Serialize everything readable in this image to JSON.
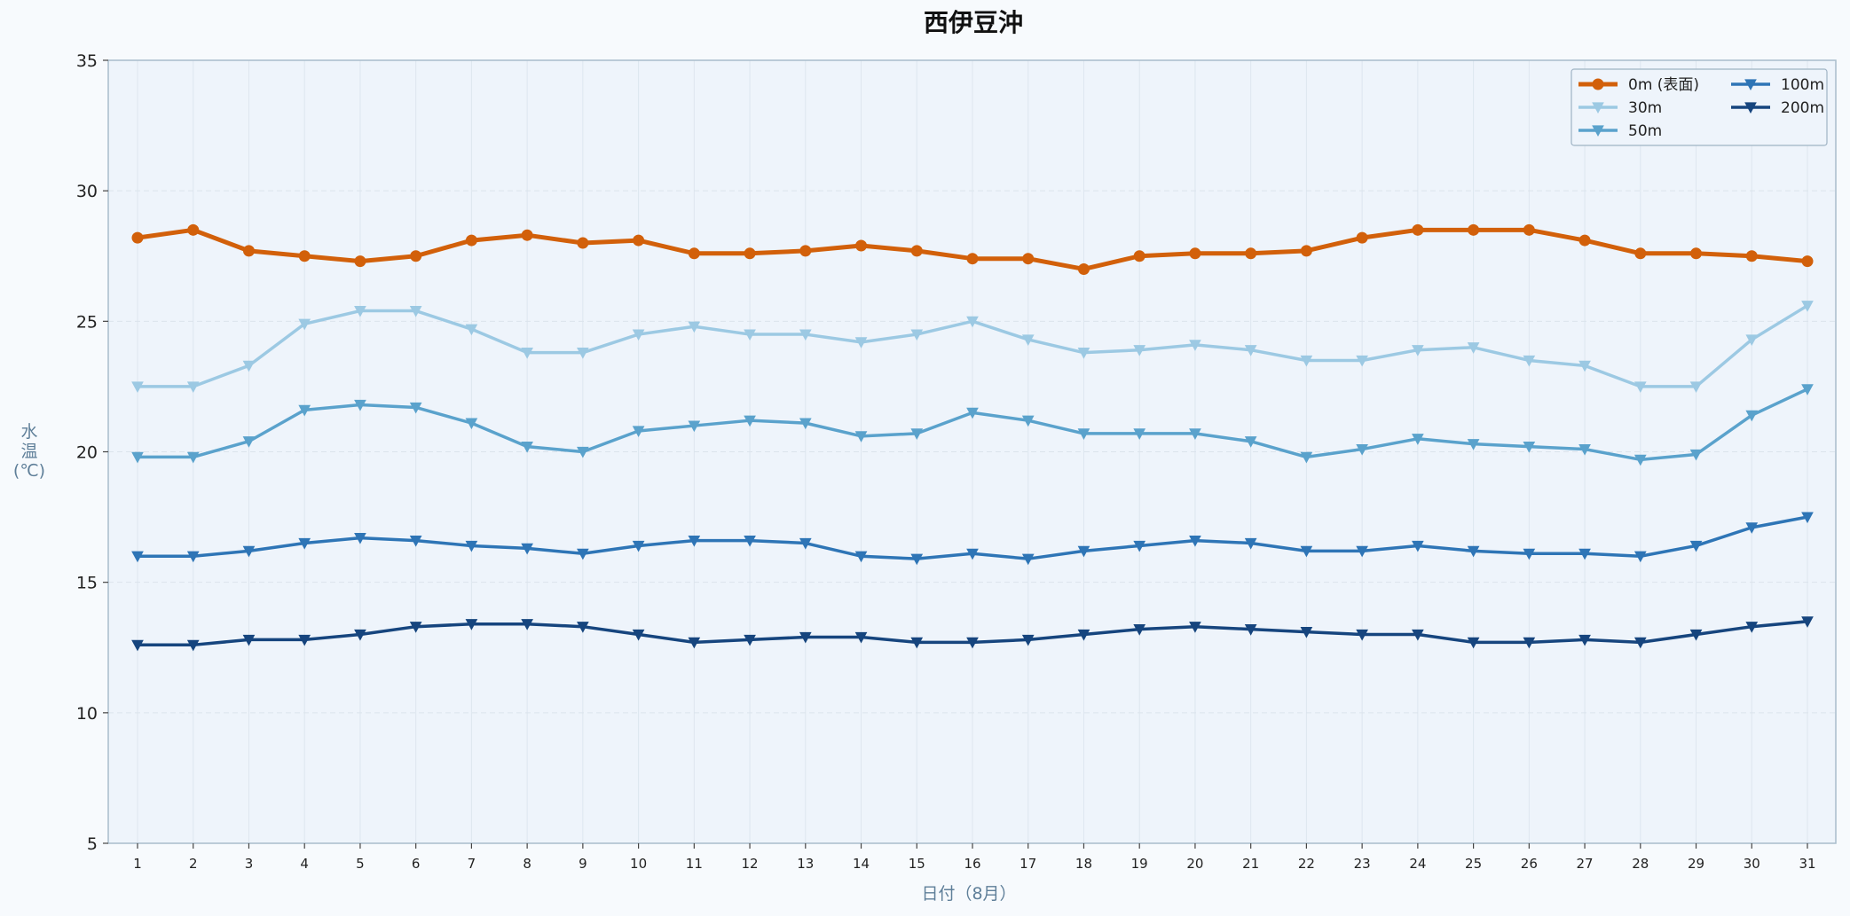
{
  "chart_data": {
    "type": "line",
    "title": "西伊豆沖",
    "xlabel": "日付（8月）",
    "ylabel": "水\n温\n(℃)",
    "ylim": [
      5,
      35
    ],
    "yticks": [
      5,
      10,
      15,
      20,
      25,
      30,
      35
    ],
    "grid": true,
    "legend_position": "top-right",
    "x": [
      "1",
      "2",
      "3",
      "4",
      "5",
      "6",
      "7",
      "8",
      "9",
      "10",
      "11",
      "12",
      "13",
      "14",
      "15",
      "16",
      "17",
      "18",
      "19",
      "20",
      "21",
      "22",
      "23",
      "24",
      "25",
      "26",
      "27",
      "28",
      "29",
      "30",
      "31"
    ],
    "series": [
      {
        "name": "0m (表面)",
        "color": "#d2600a",
        "marker": "circle",
        "values": [
          28.2,
          28.5,
          27.7,
          27.5,
          27.3,
          27.5,
          28.1,
          28.3,
          28.0,
          28.1,
          27.6,
          27.6,
          27.7,
          27.9,
          27.7,
          27.4,
          27.4,
          27.0,
          27.5,
          27.6,
          27.6,
          27.7,
          28.2,
          28.5,
          28.5,
          28.5,
          28.1,
          27.6,
          27.6,
          27.5,
          27.3
        ]
      },
      {
        "name": "30m",
        "color": "#9cc9e3",
        "marker": "triangle-down",
        "values": [
          22.5,
          22.5,
          23.3,
          24.9,
          25.4,
          25.4,
          24.7,
          23.8,
          23.8,
          24.5,
          24.8,
          24.5,
          24.5,
          24.2,
          24.5,
          25.0,
          24.3,
          23.8,
          23.9,
          24.1,
          23.9,
          23.5,
          23.5,
          23.9,
          24.0,
          23.5,
          23.3,
          22.5,
          22.5,
          24.3,
          25.6
        ]
      },
      {
        "name": "50m",
        "color": "#5aa2cc",
        "marker": "triangle-down",
        "values": [
          19.8,
          19.8,
          20.4,
          21.6,
          21.8,
          21.7,
          21.1,
          20.2,
          20.0,
          20.8,
          21.0,
          21.2,
          21.1,
          20.6,
          20.7,
          21.5,
          21.2,
          20.7,
          20.7,
          20.7,
          20.4,
          19.8,
          20.1,
          20.5,
          20.3,
          20.2,
          20.1,
          19.7,
          19.9,
          21.4,
          22.4
        ]
      },
      {
        "name": "100m",
        "color": "#2e75b6",
        "marker": "triangle-down",
        "values": [
          16.0,
          16.0,
          16.2,
          16.5,
          16.7,
          16.6,
          16.4,
          16.3,
          16.1,
          16.4,
          16.6,
          16.6,
          16.5,
          16.0,
          15.9,
          16.1,
          15.9,
          16.2,
          16.4,
          16.6,
          16.5,
          16.2,
          16.2,
          16.4,
          16.2,
          16.1,
          16.1,
          16.0,
          16.4,
          17.1,
          17.5
        ]
      },
      {
        "name": "200m",
        "color": "#16457e",
        "marker": "triangle-down",
        "values": [
          12.6,
          12.6,
          12.8,
          12.8,
          13.0,
          13.3,
          13.4,
          13.4,
          13.3,
          13.0,
          12.7,
          12.8,
          12.9,
          12.9,
          12.7,
          12.7,
          12.8,
          13.0,
          13.2,
          13.3,
          13.2,
          13.1,
          13.0,
          13.0,
          12.7,
          12.7,
          12.8,
          12.7,
          13.0,
          13.3,
          13.5
        ]
      }
    ]
  }
}
